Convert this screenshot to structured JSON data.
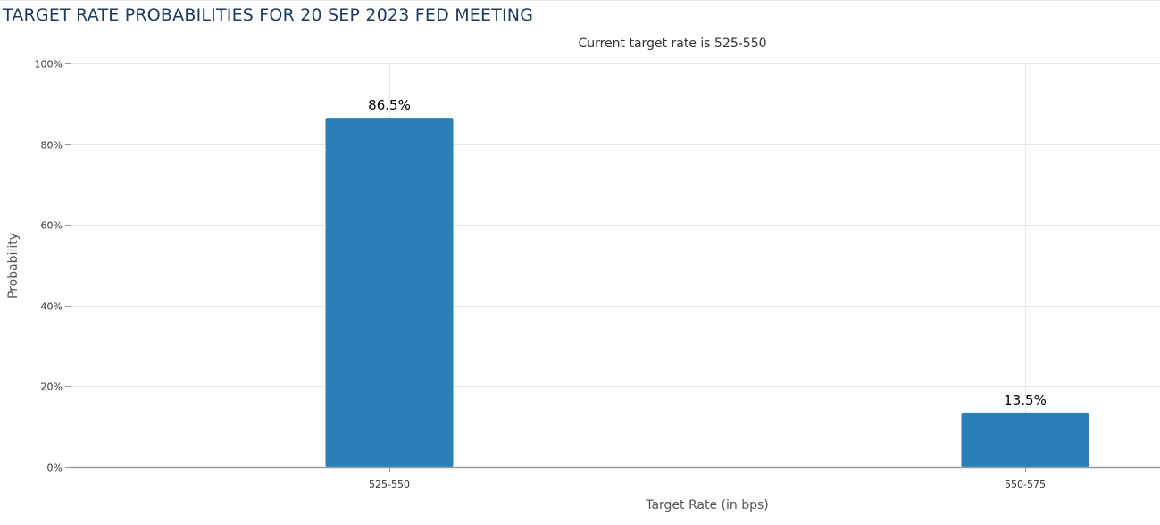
{
  "page_title": "TARGET RATE PROBABILITIES FOR 20 SEP 2023 FED MEETING",
  "chart_data": {
    "type": "bar",
    "title": "TARGET RATE PROBABILITIES FOR 20 SEP 2023 FED MEETING",
    "subtitle": "Current target rate is 525-550",
    "xlabel": "Target Rate (in bps)",
    "ylabel": "Probability",
    "categories": [
      "525-550",
      "550-575"
    ],
    "values": [
      86.5,
      13.5
    ],
    "data_labels": [
      "86.5%",
      "13.5%"
    ],
    "ylim": [
      0,
      100
    ],
    "yticks": [
      0,
      20,
      40,
      60,
      80,
      100
    ],
    "ytick_labels": [
      "0%",
      "20%",
      "40%",
      "60%",
      "80%",
      "100%"
    ],
    "grid": true,
    "legend": "none",
    "bar_color": "#2980b9",
    "grid_color": "#e6e6e6",
    "axis_color": "#999999"
  }
}
